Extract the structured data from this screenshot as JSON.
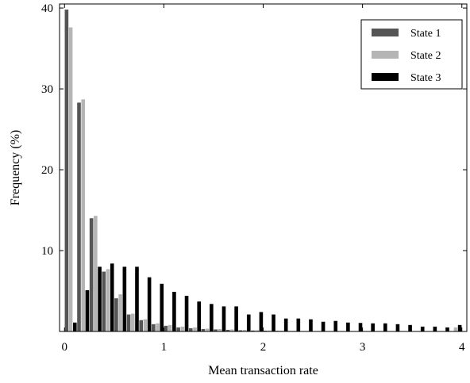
{
  "chart_data": {
    "type": "bar",
    "xlabel": "Mean transaction rate",
    "ylabel": "Frequency (%)",
    "xlim": [
      -0.05,
      4.05
    ],
    "ylim": [
      0,
      40.5
    ],
    "xticks": [
      0,
      1,
      2,
      3,
      4
    ],
    "yticks": [
      10,
      20,
      30,
      40
    ],
    "grid": false,
    "legend_position": "top-right",
    "bin_width": 0.125,
    "x": [
      0.0625,
      0.1875,
      0.3125,
      0.4375,
      0.5625,
      0.6875,
      0.8125,
      0.9375,
      1.0625,
      1.1875,
      1.3125,
      1.4375,
      1.5625,
      1.6875,
      1.8125,
      1.9375,
      2.0625,
      2.1875,
      2.3125,
      2.4375,
      2.5625,
      2.6875,
      2.8125,
      2.9375,
      3.0625,
      3.1875,
      3.3125,
      3.4375,
      3.5625,
      3.6875,
      3.8125,
      3.9375
    ],
    "series": [
      {
        "name": "State 1",
        "color": "#555555",
        "values": [
          39.8,
          28.3,
          14.0,
          7.4,
          4.1,
          2.1,
          1.4,
          0.9,
          0.7,
          0.5,
          0.4,
          0.3,
          0.25,
          0.2,
          0.15,
          0.12,
          0.1,
          0.08,
          0.06,
          0.05,
          0.04,
          0.03,
          0.03,
          0.02,
          0.02,
          0.02,
          0.01,
          0.01,
          0.01,
          0.01,
          0.01,
          0.01
        ]
      },
      {
        "name": "State 2",
        "color": "#b5b5b5",
        "values": [
          37.6,
          28.7,
          14.3,
          7.7,
          4.6,
          2.2,
          1.5,
          1.0,
          0.8,
          0.6,
          0.5,
          0.35,
          0.3,
          0.25,
          0.2,
          0.15,
          0.12,
          0.1,
          0.08,
          0.06,
          0.05,
          0.04,
          0.03,
          0.03,
          0.02,
          0.02,
          0.02,
          0.01,
          0.01,
          0.01,
          0.01,
          0.5
        ]
      },
      {
        "name": "State 3",
        "color": "#000000",
        "values": [
          1.1,
          5.1,
          8.0,
          8.4,
          8.0,
          8.0,
          6.7,
          5.9,
          4.9,
          4.4,
          3.7,
          3.4,
          3.1,
          3.1,
          2.1,
          2.4,
          2.1,
          1.6,
          1.6,
          1.5,
          1.2,
          1.3,
          1.1,
          1.05,
          1.0,
          1.0,
          0.9,
          0.8,
          0.6,
          0.6,
          0.5,
          0.8
        ]
      }
    ]
  }
}
